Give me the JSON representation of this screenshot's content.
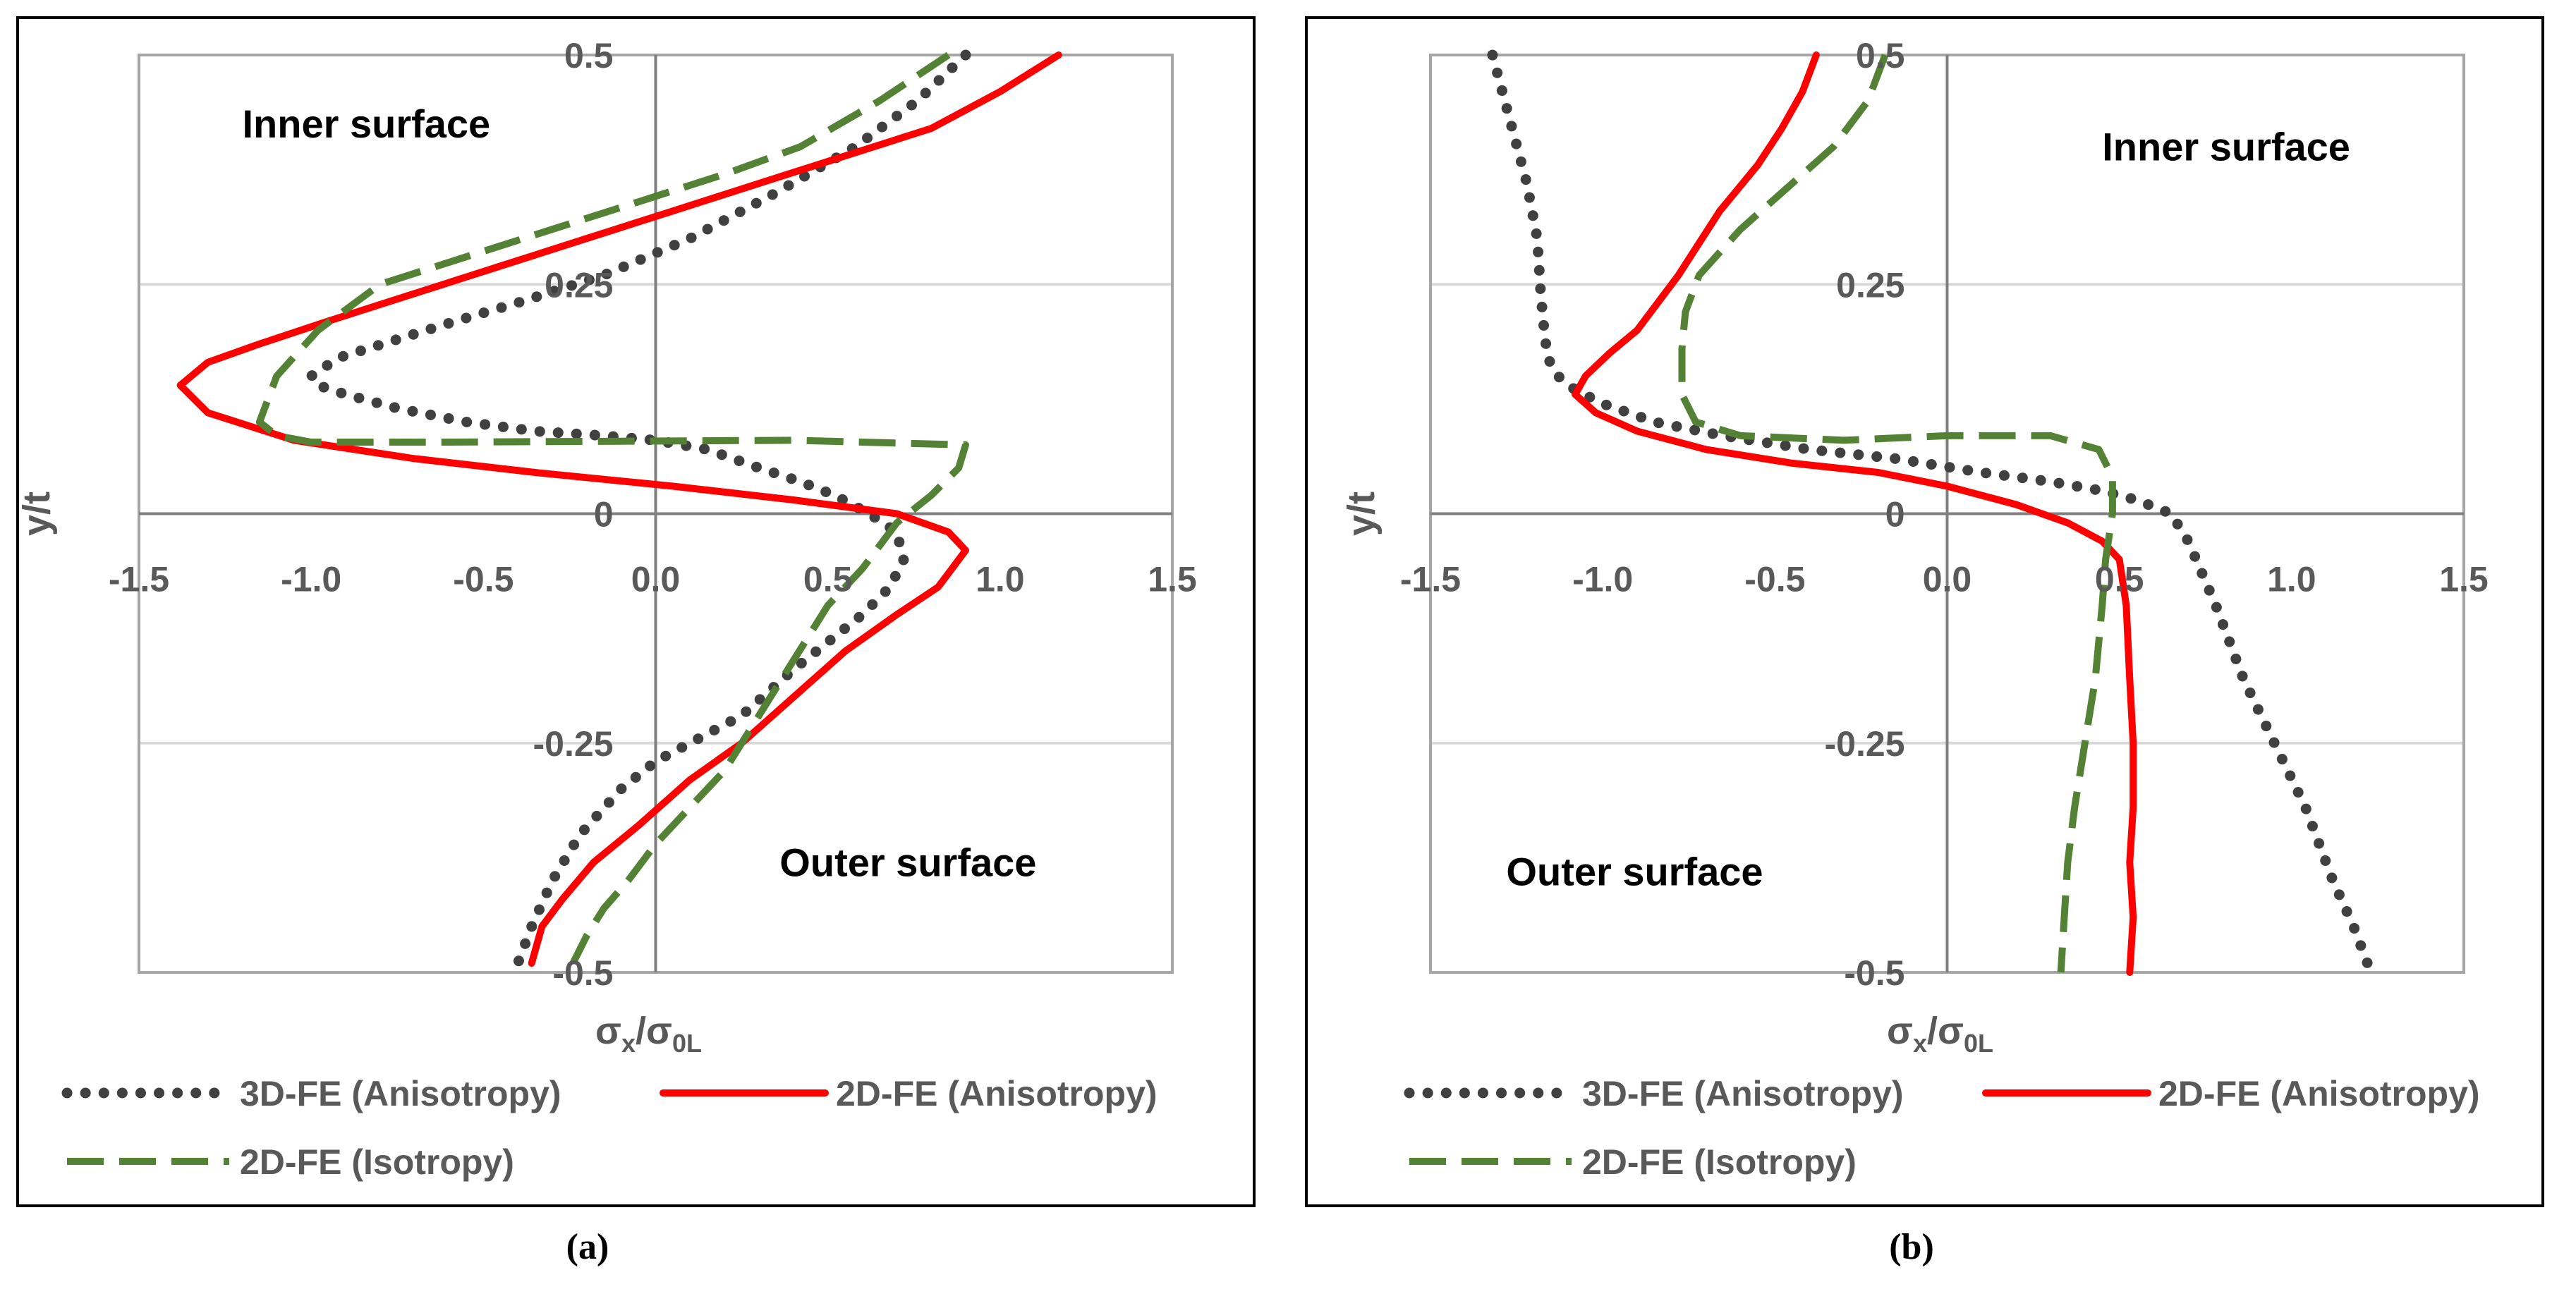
{
  "panels": [
    {
      "label": "(a)",
      "chart_data": {
        "type": "line",
        "xlabel": "σ<sub>x</sub>/σ<sub>0L</sub>",
        "xlabel_main": "σ",
        "xlabel_sub1": "x",
        "xlabel_mid": "/σ",
        "xlabel_sub2": "0L",
        "ylabel": "y/t",
        "xlim": [
          -1.5,
          1.5
        ],
        "ylim": [
          -0.5,
          0.5
        ],
        "x_ticks": [
          "-1.5",
          "-1.0",
          "-0.5",
          "0.0",
          "0.5",
          "1.0",
          "1.5"
        ],
        "x_tick_values": [
          -1.5,
          -1.0,
          -0.5,
          0.0,
          0.5,
          1.0,
          1.5
        ],
        "y_ticks": [
          "0.5",
          "0.25",
          "0",
          "-0.25",
          "-0.5"
        ],
        "y_tick_values": [
          0.5,
          0.25,
          0,
          -0.25,
          -0.5
        ],
        "grid": true,
        "annotations": [
          {
            "text": "Inner surface",
            "x": -1.2,
            "y": 0.41
          },
          {
            "text": "Outer surface",
            "x": 0.36,
            "y": -0.395
          }
        ],
        "series": [
          {
            "name": "3D-FE (Anisotropy)",
            "color": "#404040",
            "style": "dotted",
            "x": [
              0.9,
              0.76,
              0.58,
              0.35,
              0.1,
              -0.15,
              -0.4,
              -0.58,
              -0.75,
              -0.92,
              -1.0,
              -0.98,
              -0.9,
              -0.75,
              -0.55,
              -0.35,
              -0.15,
              0.0,
              0.15,
              0.3,
              0.42,
              0.52,
              0.62,
              0.7,
              0.72,
              0.68,
              0.6,
              0.5,
              0.4,
              0.25,
              0.1,
              0.0,
              -0.1,
              -0.22,
              -0.3,
              -0.36,
              -0.4
            ],
            "y": [
              0.5,
              0.45,
              0.4,
              0.35,
              0.3,
              0.26,
              0.23,
              0.21,
              0.19,
              0.17,
              0.15,
              0.14,
              0.13,
              0.115,
              0.1,
              0.09,
              0.085,
              0.08,
              0.07,
              0.05,
              0.035,
              0.02,
              0.0,
              -0.02,
              -0.05,
              -0.08,
              -0.11,
              -0.14,
              -0.17,
              -0.22,
              -0.25,
              -0.27,
              -0.3,
              -0.35,
              -0.4,
              -0.45,
              -0.49
            ]
          },
          {
            "name": "2D-FE (Anisotropy)",
            "color": "#ff0000",
            "style": "solid",
            "x": [
              1.17,
              1.0,
              0.8,
              0.55,
              0.3,
              0.05,
              -0.2,
              -0.45,
              -0.7,
              -0.95,
              -1.15,
              -1.3,
              -1.38,
              -1.3,
              -1.05,
              -0.7,
              -0.35,
              0.05,
              0.4,
              0.7,
              0.85,
              0.9,
              0.86,
              0.82,
              0.7,
              0.55,
              0.4,
              0.25,
              0.1,
              -0.05,
              -0.18,
              -0.27,
              -0.33,
              -0.36
            ],
            "y": [
              0.5,
              0.46,
              0.42,
              0.39,
              0.36,
              0.33,
              0.3,
              0.27,
              0.24,
              0.21,
              0.185,
              0.165,
              0.14,
              0.11,
              0.08,
              0.06,
              0.045,
              0.03,
              0.015,
              0.0,
              -0.02,
              -0.04,
              -0.06,
              -0.08,
              -0.11,
              -0.15,
              -0.2,
              -0.25,
              -0.29,
              -0.34,
              -0.38,
              -0.42,
              -0.45,
              -0.49
            ]
          },
          {
            "name": "2D-FE (Isotropy)",
            "color": "#548235",
            "style": "dashed",
            "x": [
              0.85,
              0.65,
              0.42,
              0.2,
              -0.05,
              -0.3,
              -0.55,
              -0.8,
              -0.98,
              -1.1,
              -1.15,
              -1.1,
              -1.0,
              -0.6,
              -0.1,
              0.4,
              0.9,
              0.88,
              0.8,
              0.7,
              0.6,
              0.5,
              0.4,
              0.3,
              0.2,
              0.1,
              0.0,
              -0.08,
              -0.15,
              -0.2,
              -0.24
            ],
            "y": [
              0.5,
              0.45,
              0.4,
              0.37,
              0.34,
              0.31,
              0.28,
              0.25,
              0.2,
              0.15,
              0.1,
              0.085,
              0.078,
              0.078,
              0.079,
              0.08,
              0.075,
              0.05,
              0.02,
              -0.01,
              -0.06,
              -0.1,
              -0.16,
              -0.22,
              -0.28,
              -0.32,
              -0.36,
              -0.4,
              -0.43,
              -0.46,
              -0.49
            ]
          }
        ],
        "legend": {
          "placement": "bottom",
          "rows": [
            [
              {
                "name": "3D-FE (Anisotropy)",
                "style": "dotted",
                "color": "#404040"
              },
              {
                "name": "2D-FE (Anisotropy)",
                "style": "solid",
                "color": "#ff0000"
              }
            ],
            [
              {
                "name": "2D-FE (Isotropy)",
                "style": "dashed",
                "color": "#548235"
              }
            ]
          ]
        }
      }
    },
    {
      "label": "(b)",
      "chart_data": {
        "type": "line",
        "xlabel": "σ<sub>x</sub>/σ<sub>0L</sub>",
        "xlabel_main": "σ",
        "xlabel_sub1": "x",
        "xlabel_mid": "/σ",
        "xlabel_sub2": "0L",
        "ylabel": "y/t",
        "xlim": [
          -1.5,
          1.5
        ],
        "ylim": [
          -0.5,
          0.5
        ],
        "x_ticks": [
          "-1.5",
          "-1.0",
          "-0.5",
          "0.0",
          "0.5",
          "1.0",
          "1.5"
        ],
        "x_tick_values": [
          -1.5,
          -1.0,
          -0.5,
          0.0,
          0.5,
          1.0,
          1.5
        ],
        "y_ticks": [
          "0.5",
          "0.25",
          "0",
          "-0.25",
          "-0.5"
        ],
        "y_tick_values": [
          0.5,
          0.25,
          0,
          -0.25,
          -0.5
        ],
        "grid": true,
        "annotations": [
          {
            "text": "Inner surface",
            "x": 0.45,
            "y": 0.385
          },
          {
            "text": "Outer surface",
            "x": -1.28,
            "y": -0.405
          }
        ],
        "series": [
          {
            "name": "3D-FE (Anisotropy)",
            "color": "#404040",
            "style": "dotted",
            "x": [
              -1.32,
              -1.27,
              -1.22,
              -1.19,
              -1.18,
              -1.17,
              -1.16,
              -1.13,
              -1.08,
              -1.0,
              -0.85,
              -0.65,
              -0.4,
              -0.15,
              0.1,
              0.3,
              0.45,
              0.55,
              0.65,
              0.7,
              0.78,
              0.86,
              0.95,
              1.04,
              1.12,
              1.18,
              1.22
            ],
            "y": [
              0.5,
              0.43,
              0.36,
              0.3,
              0.24,
              0.2,
              0.17,
              0.15,
              0.135,
              0.12,
              0.1,
              0.085,
              0.07,
              0.06,
              0.045,
              0.035,
              0.025,
              0.015,
              0.0,
              -0.03,
              -0.1,
              -0.18,
              -0.25,
              -0.32,
              -0.4,
              -0.45,
              -0.49
            ]
          },
          {
            "name": "2D-FE (Anisotropy)",
            "color": "#ff0000",
            "style": "solid",
            "x": [
              -0.38,
              -0.42,
              -0.48,
              -0.55,
              -0.66,
              -0.78,
              -0.9,
              -0.98,
              -1.05,
              -1.08,
              -1.02,
              -0.9,
              -0.7,
              -0.45,
              -0.2,
              0.0,
              0.2,
              0.35,
              0.45,
              0.5,
              0.52,
              0.53,
              0.54,
              0.54,
              0.53,
              0.54,
              0.53
            ],
            "y": [
              0.5,
              0.46,
              0.42,
              0.38,
              0.33,
              0.26,
              0.2,
              0.175,
              0.15,
              0.13,
              0.11,
              0.09,
              0.07,
              0.055,
              0.045,
              0.03,
              0.01,
              -0.01,
              -0.03,
              -0.05,
              -0.1,
              -0.18,
              -0.25,
              -0.32,
              -0.38,
              -0.44,
              -0.5
            ]
          },
          {
            "name": "2D-FE (Isotropy)",
            "color": "#548235",
            "style": "dashed",
            "x": [
              -0.18,
              -0.23,
              -0.33,
              -0.45,
              -0.6,
              -0.72,
              -0.76,
              -0.77,
              -0.77,
              -0.73,
              -0.6,
              -0.3,
              0.0,
              0.3,
              0.44,
              0.48,
              0.48,
              0.46,
              0.45,
              0.43,
              0.4,
              0.37,
              0.35,
              0.34,
              0.33
            ],
            "y": [
              0.5,
              0.45,
              0.4,
              0.36,
              0.31,
              0.26,
              0.22,
              0.18,
              0.13,
              0.1,
              0.085,
              0.08,
              0.085,
              0.085,
              0.07,
              0.04,
              0.0,
              -0.05,
              -0.1,
              -0.18,
              -0.25,
              -0.32,
              -0.38,
              -0.44,
              -0.5
            ]
          }
        ],
        "legend": {
          "placement": "bottom",
          "rows": [
            [
              {
                "name": "3D-FE (Anisotropy)",
                "style": "dotted",
                "color": "#404040"
              },
              {
                "name": "2D-FE (Anisotropy)",
                "style": "solid",
                "color": "#ff0000"
              }
            ],
            [
              {
                "name": "2D-FE (Isotropy)",
                "style": "dashed",
                "color": "#548235"
              }
            ]
          ]
        }
      }
    }
  ]
}
